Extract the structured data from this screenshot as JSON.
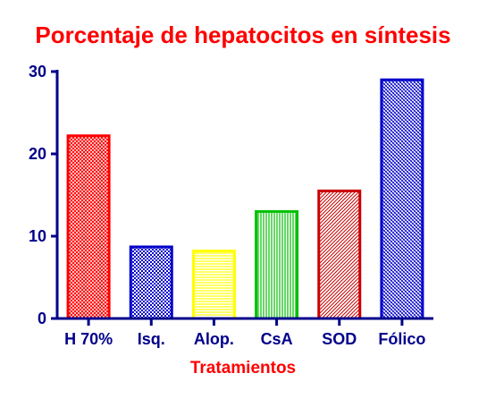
{
  "chart_data": {
    "type": "bar",
    "title": "Porcentaje de hepatocitos en síntesis",
    "xlabel": "Tratamientos",
    "ylabel": "",
    "ylim": [
      0,
      30
    ],
    "yticks": [
      0,
      10,
      20,
      30
    ],
    "categories": [
      "H 70%",
      "Isq.",
      "Alop.",
      "CsA",
      "SOD",
      "Fólico"
    ],
    "values": [
      22.2,
      8.7,
      8.2,
      13.0,
      15.5,
      29.0
    ],
    "grid": false,
    "legend": "none",
    "colors": {
      "title": "#ff0000",
      "xlabel": "#ff0000",
      "axis": "#00008b",
      "bars": [
        "#ff0000",
        "#0000cc",
        "#ffff00",
        "#00c000",
        "#cc0000",
        "#0000cc"
      ]
    },
    "patterns": [
      "crosshatch",
      "checker",
      "horizontal",
      "vertical",
      "diagonal",
      "diagonal-cross"
    ]
  }
}
